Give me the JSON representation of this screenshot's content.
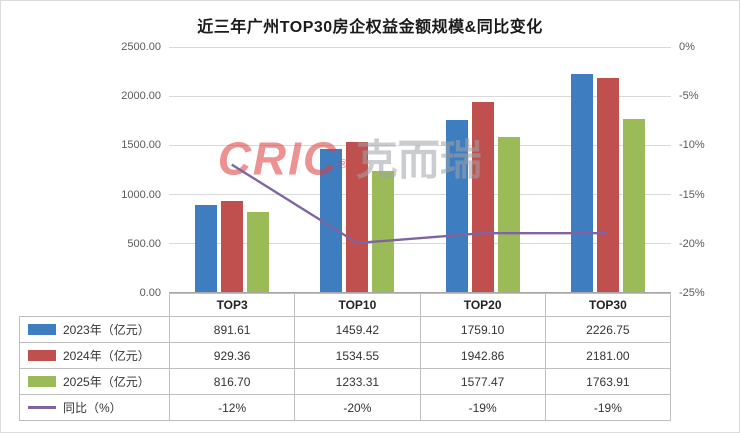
{
  "title": "近三年广州TOP30房企权益金额规模&同比变化",
  "watermark": {
    "brand": "CRIC",
    "reg": "®",
    "cn": "克而瑞"
  },
  "chart_data": {
    "type": "bar+line",
    "categories": [
      "TOP3",
      "TOP10",
      "TOP20",
      "TOP30"
    ],
    "series": [
      {
        "name": "2023年（亿元）",
        "type": "bar",
        "color": "#3E7DBF",
        "values": [
          891.61,
          1459.42,
          1759.1,
          2226.75
        ]
      },
      {
        "name": "2024年（亿元）",
        "type": "bar",
        "color": "#C0504D",
        "values": [
          929.36,
          1534.55,
          1942.86,
          2181.0
        ]
      },
      {
        "name": "2025年（亿元）",
        "type": "bar",
        "color": "#9BBB59",
        "values": [
          816.7,
          1233.31,
          1577.47,
          1763.91
        ]
      },
      {
        "name": "同比（%）",
        "type": "line",
        "color": "#8064A2",
        "values": [
          -12,
          -20,
          -19,
          -19
        ]
      }
    ],
    "left_axis": {
      "min": 0,
      "max": 2500,
      "ticks": [
        "2500.00",
        "2000.00",
        "1500.00",
        "1000.00",
        "500.00",
        "0.00"
      ]
    },
    "right_axis": {
      "min": -25,
      "max": 0,
      "ticks": [
        "0%",
        "-5%",
        "-10%",
        "-15%",
        "-20%",
        "-25%"
      ]
    },
    "grid": true,
    "legend_position": "table-left"
  }
}
